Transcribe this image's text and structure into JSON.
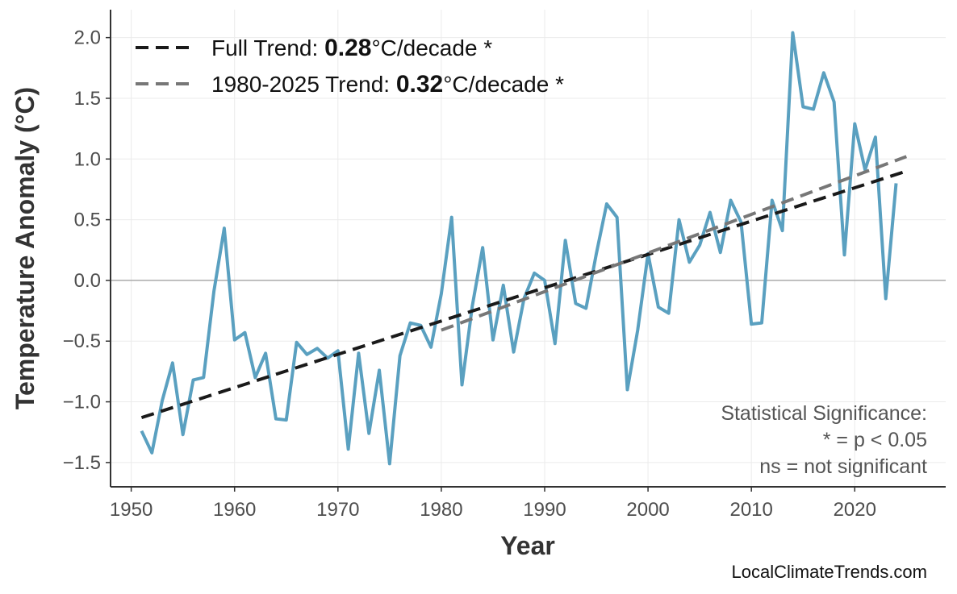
{
  "chart_data": {
    "type": "line",
    "xlabel": "Year",
    "ylabel": "Temperature Anomaly (°C)",
    "xlim": [
      1948,
      2028.8
    ],
    "ylim": [
      -1.7,
      2.23
    ],
    "xticks": [
      1950,
      1960,
      1970,
      1980,
      1990,
      2000,
      2010,
      2020
    ],
    "yticks": [
      -1.5,
      -1.0,
      -0.5,
      0.0,
      0.5,
      1.0,
      1.5,
      2.0
    ],
    "ytick_labels": [
      "−1.5",
      "−1.0",
      "−0.5",
      "0.0",
      "0.5",
      "1.0",
      "1.5",
      "2.0"
    ],
    "grid": true,
    "legend_position": "top-left",
    "series": [
      {
        "color": "#5aa0c0",
        "x": [
          1951,
          1952,
          1953,
          1954,
          1955,
          1956,
          1957,
          1958,
          1959,
          1960,
          1961,
          1962,
          1963,
          1964,
          1965,
          1966,
          1967,
          1968,
          1969,
          1970,
          1971,
          1972,
          1973,
          1974,
          1975,
          1976,
          1977,
          1978,
          1979,
          1980,
          1981,
          1982,
          1983,
          1984,
          1985,
          1986,
          1987,
          1988,
          1989,
          1990,
          1991,
          1992,
          1993,
          1994,
          1995,
          1996,
          1997,
          1998,
          1999,
          2000,
          2001,
          2002,
          2003,
          2004,
          2005,
          2006,
          2007,
          2008,
          2009,
          2010,
          2011,
          2012,
          2013,
          2014,
          2015,
          2016,
          2017,
          2018,
          2019,
          2020,
          2021,
          2022,
          2023,
          2024
        ],
        "y": [
          -1.24,
          -1.42,
          -0.99,
          -0.68,
          -1.27,
          -0.82,
          -0.8,
          -0.09,
          0.43,
          -0.49,
          -0.43,
          -0.8,
          -0.6,
          -1.14,
          -1.15,
          -0.51,
          -0.61,
          -0.56,
          -0.64,
          -0.58,
          -1.39,
          -0.6,
          -1.26,
          -0.74,
          -1.51,
          -0.62,
          -0.35,
          -0.37,
          -0.55,
          -0.11,
          0.52,
          -0.86,
          -0.21,
          0.27,
          -0.49,
          -0.04,
          -0.59,
          -0.15,
          0.06,
          0.0,
          -0.52,
          0.33,
          -0.19,
          -0.23,
          0.22,
          0.63,
          0.52,
          -0.9,
          -0.41,
          0.22,
          -0.22,
          -0.27,
          0.5,
          0.15,
          0.29,
          0.56,
          0.23,
          0.66,
          0.48,
          -0.36,
          -0.35,
          0.66,
          0.41,
          2.04,
          1.43,
          1.41,
          1.71,
          1.47,
          0.21,
          1.29,
          0.91,
          1.18,
          -0.15,
          0.8
        ]
      }
    ],
    "trends": [
      {
        "label_prefix": "Full Trend: ",
        "value": "0.28",
        "label_suffix": "°C/decade *",
        "color": "#1a1a1a",
        "x": [
          1951,
          2025
        ],
        "y": [
          -1.13,
          0.9
        ]
      },
      {
        "label_prefix": "1980-2025 Trend: ",
        "value": "0.32",
        "label_suffix": "°C/decade *",
        "color": "#777777",
        "x": [
          1980,
          2025
        ],
        "y": [
          -0.41,
          1.02
        ]
      }
    ],
    "annotation": [
      "Statistical Significance:",
      "* = p < 0.05",
      "ns = not significant"
    ],
    "credit": "LocalClimateTrends.com"
  }
}
